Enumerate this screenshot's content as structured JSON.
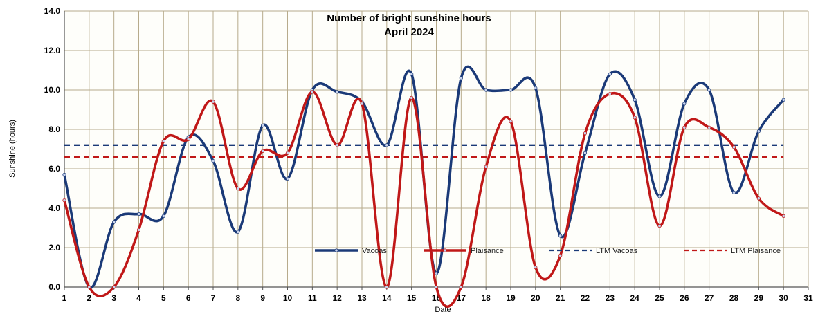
{
  "chart_data": {
    "type": "line",
    "title": "Number of bright sunshine hours",
    "subtitle": "April 2024",
    "xlabel": "Date",
    "ylabel": "Sunshine (hours)",
    "ylim": [
      0,
      14
    ],
    "yticks": [
      "0.0",
      "2.0",
      "4.0",
      "6.0",
      "8.0",
      "10.0",
      "12.0",
      "14.0"
    ],
    "xticks": [
      "1",
      "2",
      "3",
      "4",
      "5",
      "6",
      "7",
      "8",
      "9",
      "10",
      "11",
      "12",
      "13",
      "14",
      "15",
      "16",
      "17",
      "18",
      "19",
      "20",
      "21",
      "22",
      "23",
      "24",
      "25",
      "26",
      "27",
      "28",
      "29",
      "30",
      "31"
    ],
    "grid": true,
    "legend_position": "bottom-right",
    "x": [
      1,
      2,
      3,
      4,
      5,
      6,
      7,
      8,
      9,
      10,
      11,
      12,
      13,
      14,
      15,
      16,
      17,
      18,
      19,
      20,
      21,
      22,
      23,
      24,
      25,
      26,
      27,
      28,
      29,
      30
    ],
    "series": [
      {
        "name": "Vacoas",
        "style": "solid",
        "color": "#1b3a78",
        "values": [
          5.7,
          0.0,
          3.3,
          3.7,
          3.6,
          7.6,
          6.4,
          2.8,
          8.2,
          5.5,
          10.0,
          9.9,
          9.4,
          7.2,
          10.8,
          0.7,
          10.6,
          10.0,
          10.0,
          10.1,
          2.6,
          6.8,
          10.8,
          9.5,
          4.6,
          9.3,
          10.0,
          4.8,
          7.9,
          9.5
        ]
      },
      {
        "name": "Plaisance",
        "style": "solid",
        "color": "#c01818",
        "values": [
          4.4,
          0.0,
          0.0,
          2.9,
          7.4,
          7.5,
          9.4,
          5.0,
          6.9,
          6.8,
          9.9,
          7.2,
          9.3,
          0.0,
          9.6,
          0.0,
          0.0,
          6.1,
          8.4,
          1.0,
          1.6,
          7.8,
          9.8,
          8.6,
          3.1,
          8.1,
          8.1,
          7.1,
          4.5,
          3.6
        ]
      },
      {
        "name": "LTM Vacoas",
        "style": "dashed",
        "color": "#1b3a78",
        "constant": 7.2
      },
      {
        "name": "LTM Plaisance",
        "style": "dashed",
        "color": "#c01818",
        "constant": 6.6
      }
    ]
  }
}
